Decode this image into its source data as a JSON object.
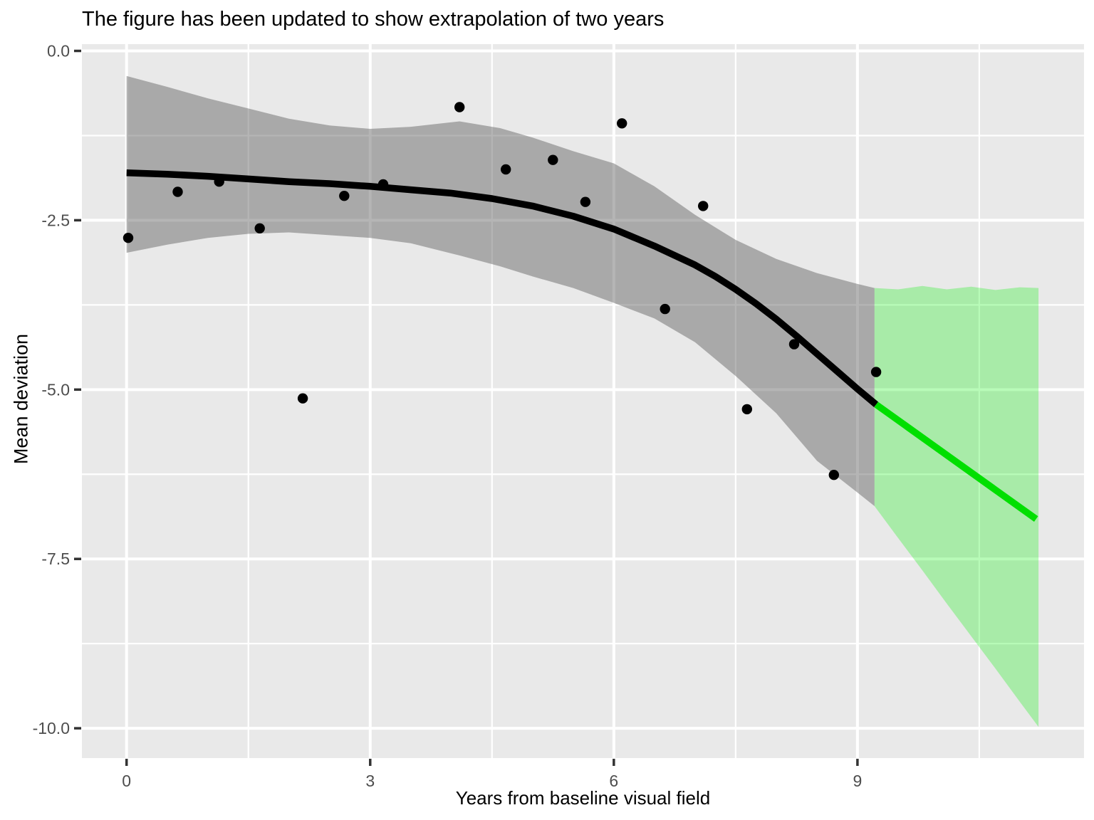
{
  "chart_data": {
    "type": "scatter",
    "title": "The figure has been updated to show extrapolation of two years",
    "xlabel": "Years from baseline visual field",
    "ylabel": "Mean deviation",
    "xlim": [
      -0.55,
      11.79
    ],
    "ylim": [
      -10.44,
      0.1
    ],
    "grid": true,
    "legend_position": "none",
    "x_major_ticks": [
      0,
      3,
      6,
      9
    ],
    "x_tick_labels": [
      "0",
      "3",
      "6",
      "9"
    ],
    "x_minor_ticks": [
      1.5,
      4.5,
      7.5,
      10.5
    ],
    "y_major_ticks": [
      0,
      -2.5,
      -5,
      -7.5,
      -10
    ],
    "y_tick_labels": [
      "0.0",
      "-2.5",
      "-5.0",
      "-7.5",
      "-10.0"
    ],
    "y_minor_ticks": [
      -1.25,
      -3.75,
      -6.25,
      -8.75
    ],
    "points": [
      [
        0.02,
        -2.76
      ],
      [
        0.63,
        -2.08
      ],
      [
        1.14,
        -1.93
      ],
      [
        1.64,
        -2.62
      ],
      [
        2.17,
        -5.13
      ],
      [
        2.68,
        -2.14
      ],
      [
        3.16,
        -1.97
      ],
      [
        4.1,
        -0.83
      ],
      [
        4.67,
        -1.75
      ],
      [
        5.25,
        -1.61
      ],
      [
        5.65,
        -2.23
      ],
      [
        6.1,
        -1.07
      ],
      [
        6.63,
        -3.81
      ],
      [
        7.1,
        -2.29
      ],
      [
        7.64,
        -5.29
      ],
      [
        8.22,
        -4.33
      ],
      [
        8.71,
        -6.26
      ],
      [
        9.23,
        -4.74
      ]
    ],
    "loess_line": {
      "x": [
        0,
        0.5,
        1,
        1.5,
        2,
        2.5,
        3,
        3.5,
        4,
        4.5,
        5,
        5.5,
        6,
        6.5,
        7,
        7.25,
        7.5,
        7.75,
        8,
        8.25,
        8.5,
        8.75,
        9,
        9.23
      ],
      "y": [
        -1.8,
        -1.82,
        -1.85,
        -1.89,
        -1.93,
        -1.96,
        -2.0,
        -2.05,
        -2.1,
        -2.18,
        -2.29,
        -2.44,
        -2.63,
        -2.88,
        -3.16,
        -3.33,
        -3.52,
        -3.73,
        -3.96,
        -4.21,
        -4.47,
        -4.73,
        -4.99,
        -5.22
      ]
    },
    "loess_ribbon": {
      "x": [
        0,
        0.5,
        1,
        1.5,
        2,
        2.5,
        3,
        3.5,
        4.1,
        4.6,
        5,
        5.5,
        6,
        6.5,
        7,
        7.5,
        8,
        8.5,
        9,
        9.21
      ],
      "upper": [
        -0.37,
        -0.53,
        -0.7,
        -0.85,
        -1.0,
        -1.1,
        -1.15,
        -1.12,
        -1.04,
        -1.14,
        -1.28,
        -1.48,
        -1.66,
        -2.0,
        -2.42,
        -2.79,
        -3.07,
        -3.28,
        -3.44,
        -3.5
      ],
      "lower": [
        -2.98,
        -2.86,
        -2.76,
        -2.7,
        -2.68,
        -2.72,
        -2.76,
        -2.84,
        -3.02,
        -3.18,
        -3.33,
        -3.5,
        -3.72,
        -3.95,
        -4.3,
        -4.8,
        -5.35,
        -6.05,
        -6.52,
        -6.72
      ]
    },
    "extrapolation_years": 2,
    "extrapolation_line": {
      "x": [
        9.23,
        11.2
      ],
      "y": [
        -5.22,
        -6.91
      ]
    },
    "extrapolation_ribbon": {
      "x": [
        9.21,
        9.5,
        9.8,
        10.1,
        10.4,
        10.7,
        11.0,
        11.23
      ],
      "upper": [
        -3.5,
        -3.52,
        -3.47,
        -3.52,
        -3.48,
        -3.53,
        -3.49,
        -3.5
      ],
      "lower": [
        -6.72,
        -7.19,
        -7.67,
        -8.16,
        -8.64,
        -9.12,
        -9.61,
        -9.98
      ]
    },
    "colors": {
      "panel_background": "#E9E9E9",
      "gridline": "#FFFFFF",
      "point": "#000000",
      "loess_line": "#000000",
      "loess_ribbon": "rgba(100,100,100,0.48)",
      "extrapolation_line": "#00DF00",
      "extrapolation_ribbon": "rgba(0,240,0,0.28)",
      "tick_mark": "#333333",
      "tick_label": "#4D4D4D",
      "axis_title": "#000000",
      "title": "#000000"
    }
  }
}
